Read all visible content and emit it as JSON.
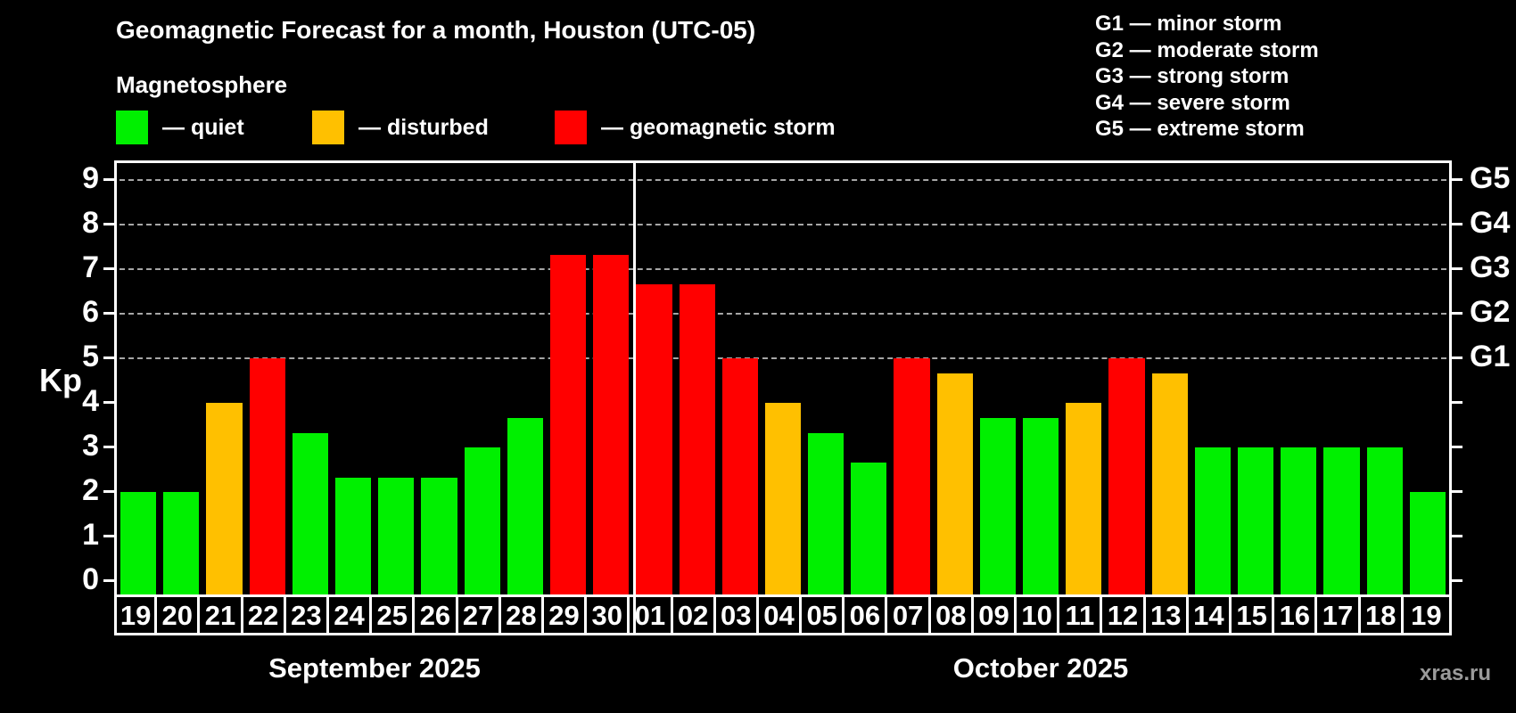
{
  "header": {
    "title": "Geomagnetic Forecast for a month, Houston (UTC-05)",
    "subtitle": "Magnetosphere"
  },
  "legend": {
    "items": [
      {
        "name": "quiet",
        "color": "#00f000",
        "label": "— quiet"
      },
      {
        "name": "disturbed",
        "color": "#ffc000",
        "label": "— disturbed"
      },
      {
        "name": "storm",
        "color": "#ff0000",
        "label": "— geomagnetic storm"
      }
    ]
  },
  "g_legend": [
    "G1 — minor storm",
    "G2 — moderate storm",
    "G3 — strong storm",
    "G4 — severe storm",
    "G5 — extreme storm"
  ],
  "watermark": "xras.ru",
  "chart_data": {
    "type": "bar",
    "title": "Geomagnetic Forecast for a month, Houston (UTC-05)",
    "subtitle": "Magnetosphere",
    "xlabel": "",
    "ylabel": "Kp",
    "ylim": [
      0,
      9.4
    ],
    "grid": "dashed horizontal lines at Kp 5-9 only",
    "gridlines_at": [
      5,
      6,
      7,
      8,
      9
    ],
    "left_ticks": [
      0,
      1,
      2,
      3,
      4,
      5,
      6,
      7,
      8,
      9
    ],
    "right_scale": [
      {
        "kp": 5,
        "label": "G1"
      },
      {
        "kp": 6,
        "label": "G2"
      },
      {
        "kp": 7,
        "label": "G3"
      },
      {
        "kp": 8,
        "label": "G4"
      },
      {
        "kp": 9,
        "label": "G5"
      }
    ],
    "months": [
      {
        "label": "September 2025",
        "days": [
          {
            "day": "19",
            "kp": 2,
            "status": "quiet"
          },
          {
            "day": "20",
            "kp": 2,
            "status": "quiet"
          },
          {
            "day": "21",
            "kp": 4,
            "status": "disturbed"
          },
          {
            "day": "22",
            "kp": 5,
            "status": "storm"
          },
          {
            "day": "23",
            "kp": 3.33,
            "status": "quiet"
          },
          {
            "day": "24",
            "kp": 2.33,
            "status": "quiet"
          },
          {
            "day": "25",
            "kp": 2.33,
            "status": "quiet"
          },
          {
            "day": "26",
            "kp": 2.33,
            "status": "quiet"
          },
          {
            "day": "27",
            "kp": 3,
            "status": "quiet"
          },
          {
            "day": "28",
            "kp": 3.67,
            "status": "quiet"
          },
          {
            "day": "29",
            "kp": 7.33,
            "status": "storm"
          },
          {
            "day": "30",
            "kp": 7.33,
            "status": "storm"
          }
        ]
      },
      {
        "label": "October 2025",
        "days": [
          {
            "day": "01",
            "kp": 6.67,
            "status": "storm"
          },
          {
            "day": "02",
            "kp": 6.67,
            "status": "storm"
          },
          {
            "day": "03",
            "kp": 5,
            "status": "storm"
          },
          {
            "day": "04",
            "kp": 4,
            "status": "disturbed"
          },
          {
            "day": "05",
            "kp": 3.33,
            "status": "quiet"
          },
          {
            "day": "06",
            "kp": 2.67,
            "status": "quiet"
          },
          {
            "day": "07",
            "kp": 5,
            "status": "storm"
          },
          {
            "day": "08",
            "kp": 4.67,
            "status": "disturbed"
          },
          {
            "day": "09",
            "kp": 3.67,
            "status": "quiet"
          },
          {
            "day": "10",
            "kp": 3.67,
            "status": "quiet"
          },
          {
            "day": "11",
            "kp": 4,
            "status": "disturbed"
          },
          {
            "day": "12",
            "kp": 5,
            "status": "storm"
          },
          {
            "day": "13",
            "kp": 4.67,
            "status": "disturbed"
          },
          {
            "day": "14",
            "kp": 3,
            "status": "quiet"
          },
          {
            "day": "15",
            "kp": 3,
            "status": "quiet"
          },
          {
            "day": "16",
            "kp": 3,
            "status": "quiet"
          },
          {
            "day": "17",
            "kp": 3,
            "status": "quiet"
          },
          {
            "day": "18",
            "kp": 3,
            "status": "quiet"
          },
          {
            "day": "19",
            "kp": 2,
            "status": "quiet"
          }
        ]
      }
    ]
  }
}
